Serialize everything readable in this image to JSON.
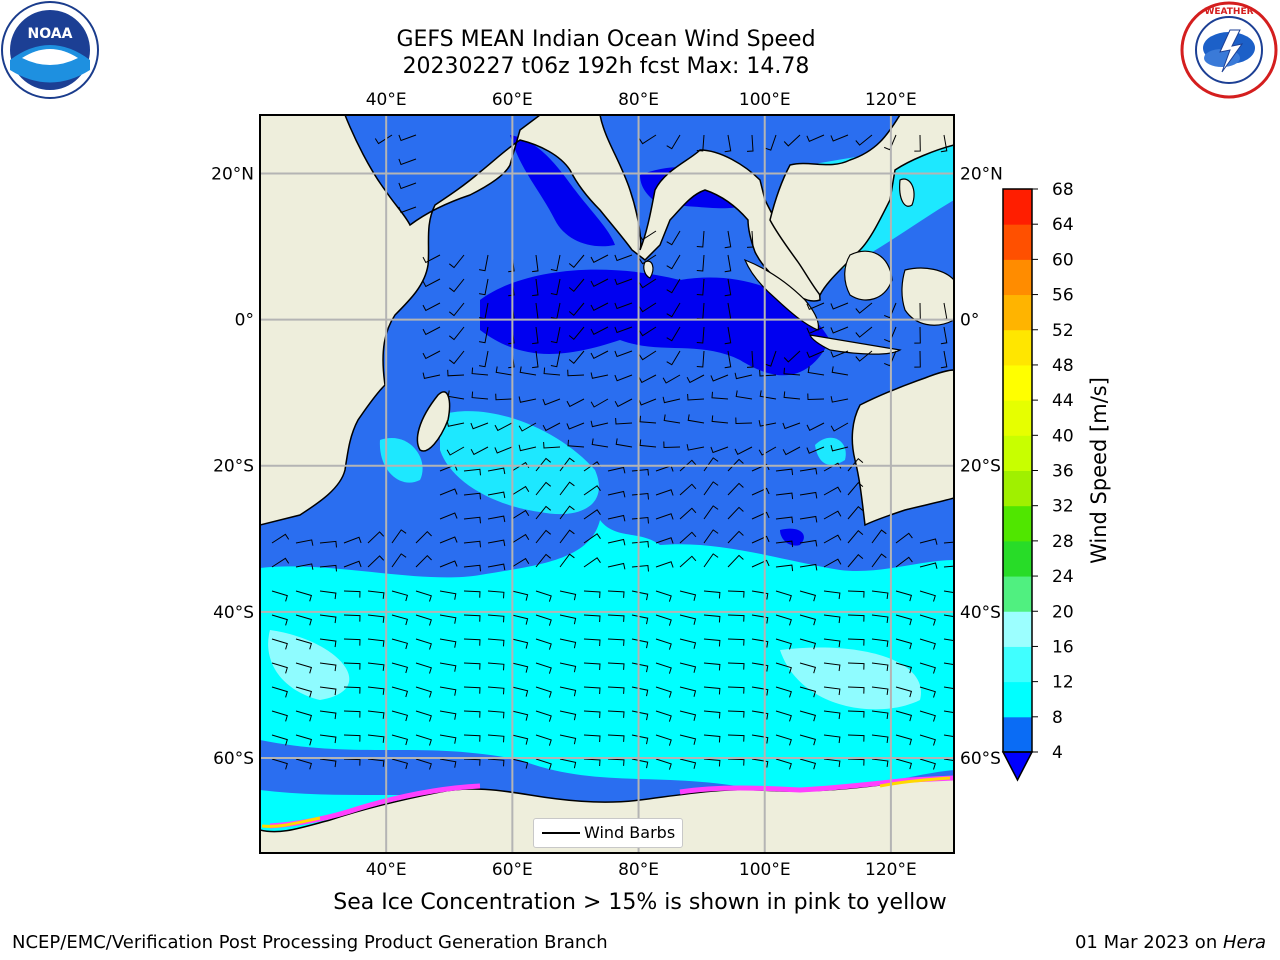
{
  "title": {
    "line1": "GEFS MEAN Indian Ocean Wind Speed",
    "line2": "20230227 t06z 192h fcst   Max: 14.78"
  },
  "map": {
    "lon_labels": [
      "40°E",
      "60°E",
      "80°E",
      "100°E",
      "120°E"
    ],
    "lat_labels": [
      "20°N",
      "0°",
      "20°S",
      "40°S",
      "60°S"
    ],
    "lon_values": [
      40,
      60,
      80,
      100,
      120
    ],
    "lat_values": [
      20,
      0,
      -20,
      -40,
      -60
    ],
    "lon_range": [
      20,
      130
    ],
    "lat_range": [
      -73,
      28
    ],
    "legend_label": "Wind Barbs",
    "grid": true
  },
  "colorbar": {
    "label": "Wind Speed [m/s]",
    "ticks": [
      "4",
      "8",
      "12",
      "16",
      "20",
      "24",
      "28",
      "32",
      "36",
      "40",
      "44",
      "48",
      "52",
      "56",
      "60",
      "64",
      "68"
    ],
    "colors": [
      "#0a6cf5",
      "#00ffff",
      "#40ffff",
      "#9cffff",
      "#50f080",
      "#28dc28",
      "#50e600",
      "#a0f000",
      "#c8ff00",
      "#e6ff00",
      "#ffff00",
      "#ffe600",
      "#ffb400",
      "#ff8c00",
      "#ff5000",
      "#ff1e00"
    ],
    "under_color": "#0000ff"
  },
  "note": "Sea Ice Concentration > 15% is shown in pink to yellow",
  "footer": {
    "left": "NCEP/EMC/Verification Post Processing Product Generation Branch",
    "date": "01 Mar 2023 on ",
    "machine": "Hera"
  },
  "logos": {
    "noaa": "NOAA",
    "nws": "NATIONAL WEATHER SERVICE"
  }
}
